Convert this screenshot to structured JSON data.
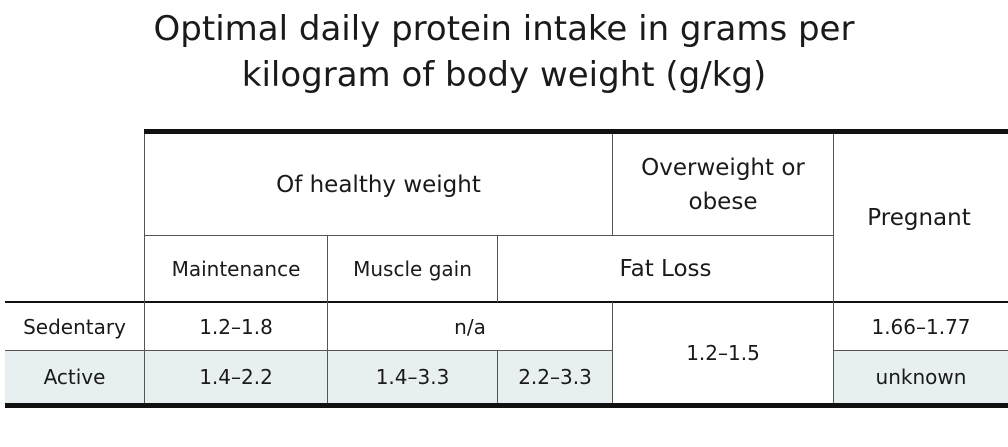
{
  "title_line1": "Optimal daily protein intake in grams per",
  "title_line2": "kilogram of body weight (g/kg)",
  "headers": {
    "healthy": "Of healthy weight",
    "overweight": "Overweight or obese",
    "pregnant": "Pregnant",
    "maintenance": "Maintenance",
    "muscle_gain": "Muscle gain",
    "fat_loss": "Fat Loss"
  },
  "rows": {
    "sedentary": {
      "label": "Sedentary",
      "maintenance": "1.2–1.8",
      "muscle_gain_fat_loss": "n/a",
      "pregnant": "1.66–1.77"
    },
    "active": {
      "label": "Active",
      "maintenance": "1.4–2.2",
      "muscle_gain": "1.4–3.3",
      "fat_loss": "2.2–3.3",
      "pregnant": "unknown"
    },
    "overweight_value": "1.2–1.5"
  },
  "colors": {
    "band": "#e8eff1",
    "rule": "#111111",
    "line": "#555555"
  }
}
